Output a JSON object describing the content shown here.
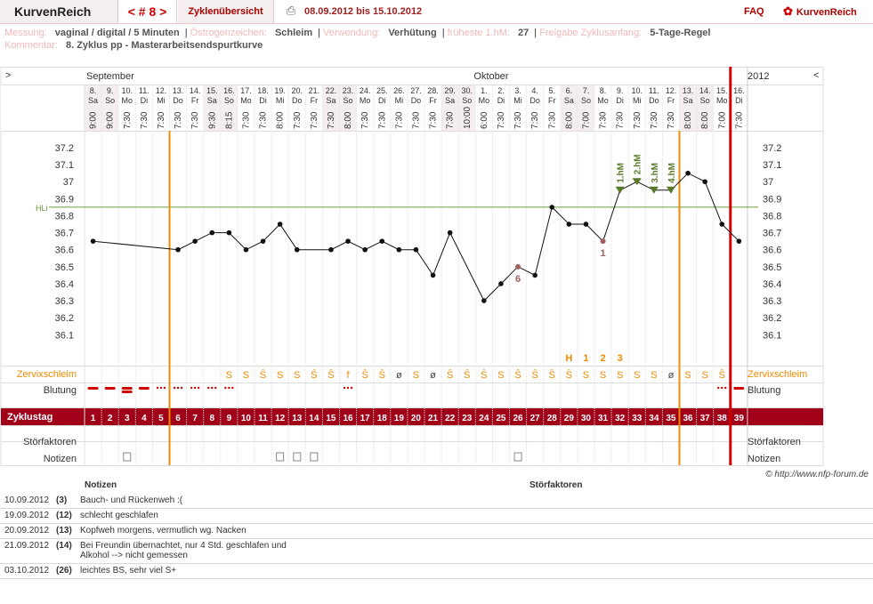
{
  "topbar": {
    "brand": "KurvenReich",
    "cycle_nav": "< # 8 >",
    "overview_tab": "Zyklenübersicht",
    "print_icon": "print-icon",
    "date_range": "08.09.2012 bis 15.10.2012",
    "faq": "FAQ",
    "logo_text": "KurvenReich"
  },
  "info": {
    "messung_label": "Messung:",
    "messung_value": "vaginal / digital / 5 Minuten",
    "oestrogen_label": "Östrogenzeichen:",
    "oestrogen_value": "Schleim",
    "verwendung_label": "Verwendung:",
    "verwendung_value": "Verhütung",
    "fruehste_label": "früheste 1.hM:",
    "fruehste_value": "27",
    "freigabe_label": "Freigabe Zyklusanfang:",
    "freigabe_value": "5-Tage-Regel",
    "kommentar_label": "Kommentar:",
    "kommentar_value": "8. Zyklus pp - Masterarbeitsendspurtkurve"
  },
  "chart_nav": {
    "prev": ">",
    "next": "<",
    "year": "2012"
  },
  "months": [
    {
      "label": "September"
    },
    {
      "label": "Oktober"
    }
  ],
  "days": [
    {
      "date": "8.",
      "wd": "Sa",
      "time": "9:00"
    },
    {
      "date": "9.",
      "wd": "So",
      "time": "9:00"
    },
    {
      "date": "10.",
      "wd": "Mo",
      "time": "7:30"
    },
    {
      "date": "11.",
      "wd": "Di",
      "time": "7:30"
    },
    {
      "date": "12.",
      "wd": "Mi",
      "time": "7:30"
    },
    {
      "date": "13.",
      "wd": "Do",
      "time": "7:30"
    },
    {
      "date": "14.",
      "wd": "Fr",
      "time": "7:30"
    },
    {
      "date": "15.",
      "wd": "Sa",
      "time": "9:30"
    },
    {
      "date": "16.",
      "wd": "So",
      "time": "8:15"
    },
    {
      "date": "17.",
      "wd": "Mo",
      "time": "7:30"
    },
    {
      "date": "18.",
      "wd": "Di",
      "time": "7:30"
    },
    {
      "date": "19.",
      "wd": "Mi",
      "time": "8:00"
    },
    {
      "date": "20.",
      "wd": "Do",
      "time": "7:30"
    },
    {
      "date": "21.",
      "wd": "Fr",
      "time": "7:30"
    },
    {
      "date": "22.",
      "wd": "Sa",
      "time": "7:30"
    },
    {
      "date": "23.",
      "wd": "So",
      "time": "8:00"
    },
    {
      "date": "24.",
      "wd": "Mo",
      "time": "7:30"
    },
    {
      "date": "25.",
      "wd": "Di",
      "time": "7:30"
    },
    {
      "date": "26.",
      "wd": "Mi",
      "time": "7:30"
    },
    {
      "date": "27.",
      "wd": "Do",
      "time": "7:30"
    },
    {
      "date": "28.",
      "wd": "Fr",
      "time": "7:30"
    },
    {
      "date": "29.",
      "wd": "Sa",
      "time": "7:30"
    },
    {
      "date": "30.",
      "wd": "So",
      "time": "10:00"
    },
    {
      "date": "1.",
      "wd": "Mo",
      "time": "6:00"
    },
    {
      "date": "2.",
      "wd": "Di",
      "time": "7:30"
    },
    {
      "date": "3.",
      "wd": "Mi",
      "time": "7:30"
    },
    {
      "date": "4.",
      "wd": "Do",
      "time": "7:30"
    },
    {
      "date": "5.",
      "wd": "Fr",
      "time": "7:30"
    },
    {
      "date": "6.",
      "wd": "Sa",
      "time": "8:00"
    },
    {
      "date": "7.",
      "wd": "So",
      "time": "7:00"
    },
    {
      "date": "8.",
      "wd": "Mo",
      "time": "7:30"
    },
    {
      "date": "9.",
      "wd": "Di",
      "time": "7:30"
    },
    {
      "date": "10.",
      "wd": "Mi",
      "time": "7:30"
    },
    {
      "date": "11.",
      "wd": "Do",
      "time": "7:30"
    },
    {
      "date": "12.",
      "wd": "Fr",
      "time": "7:30"
    },
    {
      "date": "13.",
      "wd": "Sa",
      "time": "8:00"
    },
    {
      "date": "14.",
      "wd": "So",
      "time": "8:00"
    },
    {
      "date": "15.",
      "wd": "Mo",
      "time": "7:00"
    },
    {
      "date": "16.",
      "wd": "Di",
      "time": "7:30"
    }
  ],
  "chart_data": {
    "type": "line",
    "x": [
      1,
      2,
      3,
      4,
      5,
      6,
      7,
      8,
      9,
      10,
      11,
      12,
      13,
      14,
      15,
      16,
      17,
      18,
      19,
      20,
      21,
      22,
      23,
      24,
      25,
      26,
      27,
      28,
      29,
      30,
      31,
      32,
      33,
      34,
      35,
      36,
      37,
      38,
      39
    ],
    "temperature": [
      36.65,
      null,
      null,
      null,
      null,
      36.6,
      36.65,
      36.7,
      36.7,
      36.6,
      36.65,
      36.75,
      36.6,
      null,
      36.6,
      36.65,
      36.6,
      36.65,
      36.6,
      36.6,
      36.45,
      36.7,
      null,
      36.3,
      36.4,
      36.5,
      36.45,
      36.85,
      36.75,
      36.75,
      36.65,
      36.95,
      37.0,
      36.95,
      36.95,
      37.05,
      37.0,
      36.75,
      36.65
    ],
    "ylim": [
      36.0,
      37.3
    ],
    "yticks": [
      "37.2",
      "37.1",
      "37",
      "36.9",
      "36.8",
      "36.7",
      "36.6",
      "36.5",
      "36.4",
      "36.3",
      "36.2",
      "36.1"
    ],
    "hili_value": 36.85,
    "hili_label": "HLi",
    "ovulation_line_day": 5.5,
    "fertile_end_line_day": 35.5,
    "period_line_day": 38.5,
    "marker_labels": [
      {
        "day": 26,
        "text": "6"
      },
      {
        "day": 31,
        "text": "1"
      }
    ],
    "hm_labels": [
      {
        "day": 32,
        "text": "1.hM"
      },
      {
        "day": 33,
        "text": "2.hM"
      },
      {
        "day": 34,
        "text": "3.hM"
      },
      {
        "day": 35,
        "text": "4.hM"
      }
    ],
    "peak_labels": [
      {
        "day": 29,
        "text": "H"
      },
      {
        "day": 30,
        "text": "1"
      },
      {
        "day": 31,
        "text": "2"
      },
      {
        "day": 32,
        "text": "3"
      }
    ]
  },
  "rows": {
    "cervix_label": "Zervixschleim",
    "bleeding_label": "Blutung",
    "cycle_label": "Zyklustag",
    "disturb_label": "Störfaktoren",
    "notes_label": "Notizen",
    "cervix": [
      "",
      "",
      "",
      "",
      "",
      "",
      "",
      "",
      "S",
      "S",
      "Ŝ",
      "S",
      "S",
      "Ŝ",
      "Ŝ",
      "f",
      "Ŝ",
      "Ŝ",
      "ø",
      "S",
      "ø",
      "Ŝ",
      "Ŝ",
      "Ŝ",
      "S",
      "Ŝ",
      "Ŝ",
      "Ŝ",
      "Ŝ",
      "S",
      "S",
      "S",
      "S",
      "S",
      "ø",
      "S",
      "S",
      "Ŝ",
      ""
    ],
    "bleeding": [
      "heavy",
      "heavy",
      "heavier",
      "heavy",
      "dots",
      "dots",
      "dots",
      "dots",
      "dots",
      "",
      "",
      "",
      "",
      "",
      "",
      "dots",
      "",
      "",
      "",
      "",
      "",
      "",
      "",
      "",
      "",
      "",
      "",
      "",
      "",
      "",
      "",
      "",
      "",
      "",
      "",
      "",
      "",
      "dots",
      "heavy"
    ],
    "notes_days": [
      3,
      12,
      13,
      14,
      26
    ]
  },
  "notes": {
    "notes_header": "Notizen",
    "disturb_header": "Störfaktoren",
    "copyright": "© http://www.nfp-forum.de",
    "entries": [
      {
        "date": "10.09.2012",
        "day": "(3)",
        "text": "Bauch- und Rückenweh :("
      },
      {
        "date": "19.09.2012",
        "day": "(12)",
        "text": "schlecht geschlafen"
      },
      {
        "date": "20.09.2012",
        "day": "(13)",
        "text": "Kopfweh morgens, vermutlich wg. Nacken"
      },
      {
        "date": "21.09.2012",
        "day": "(14)",
        "text": "Bei Freundin übernachtet, nur 4 Std. geschlafen und Alkohol --> nicht gemessen"
      },
      {
        "date": "03.10.2012",
        "day": "(26)",
        "text": "leichtes BS, sehr viel S+"
      }
    ]
  },
  "colors": {
    "accent": "#a00018",
    "orange": "#f08a00",
    "red": "#d00000",
    "hm_green": "#5a7a2a",
    "header_pink": "#f4eeee"
  }
}
